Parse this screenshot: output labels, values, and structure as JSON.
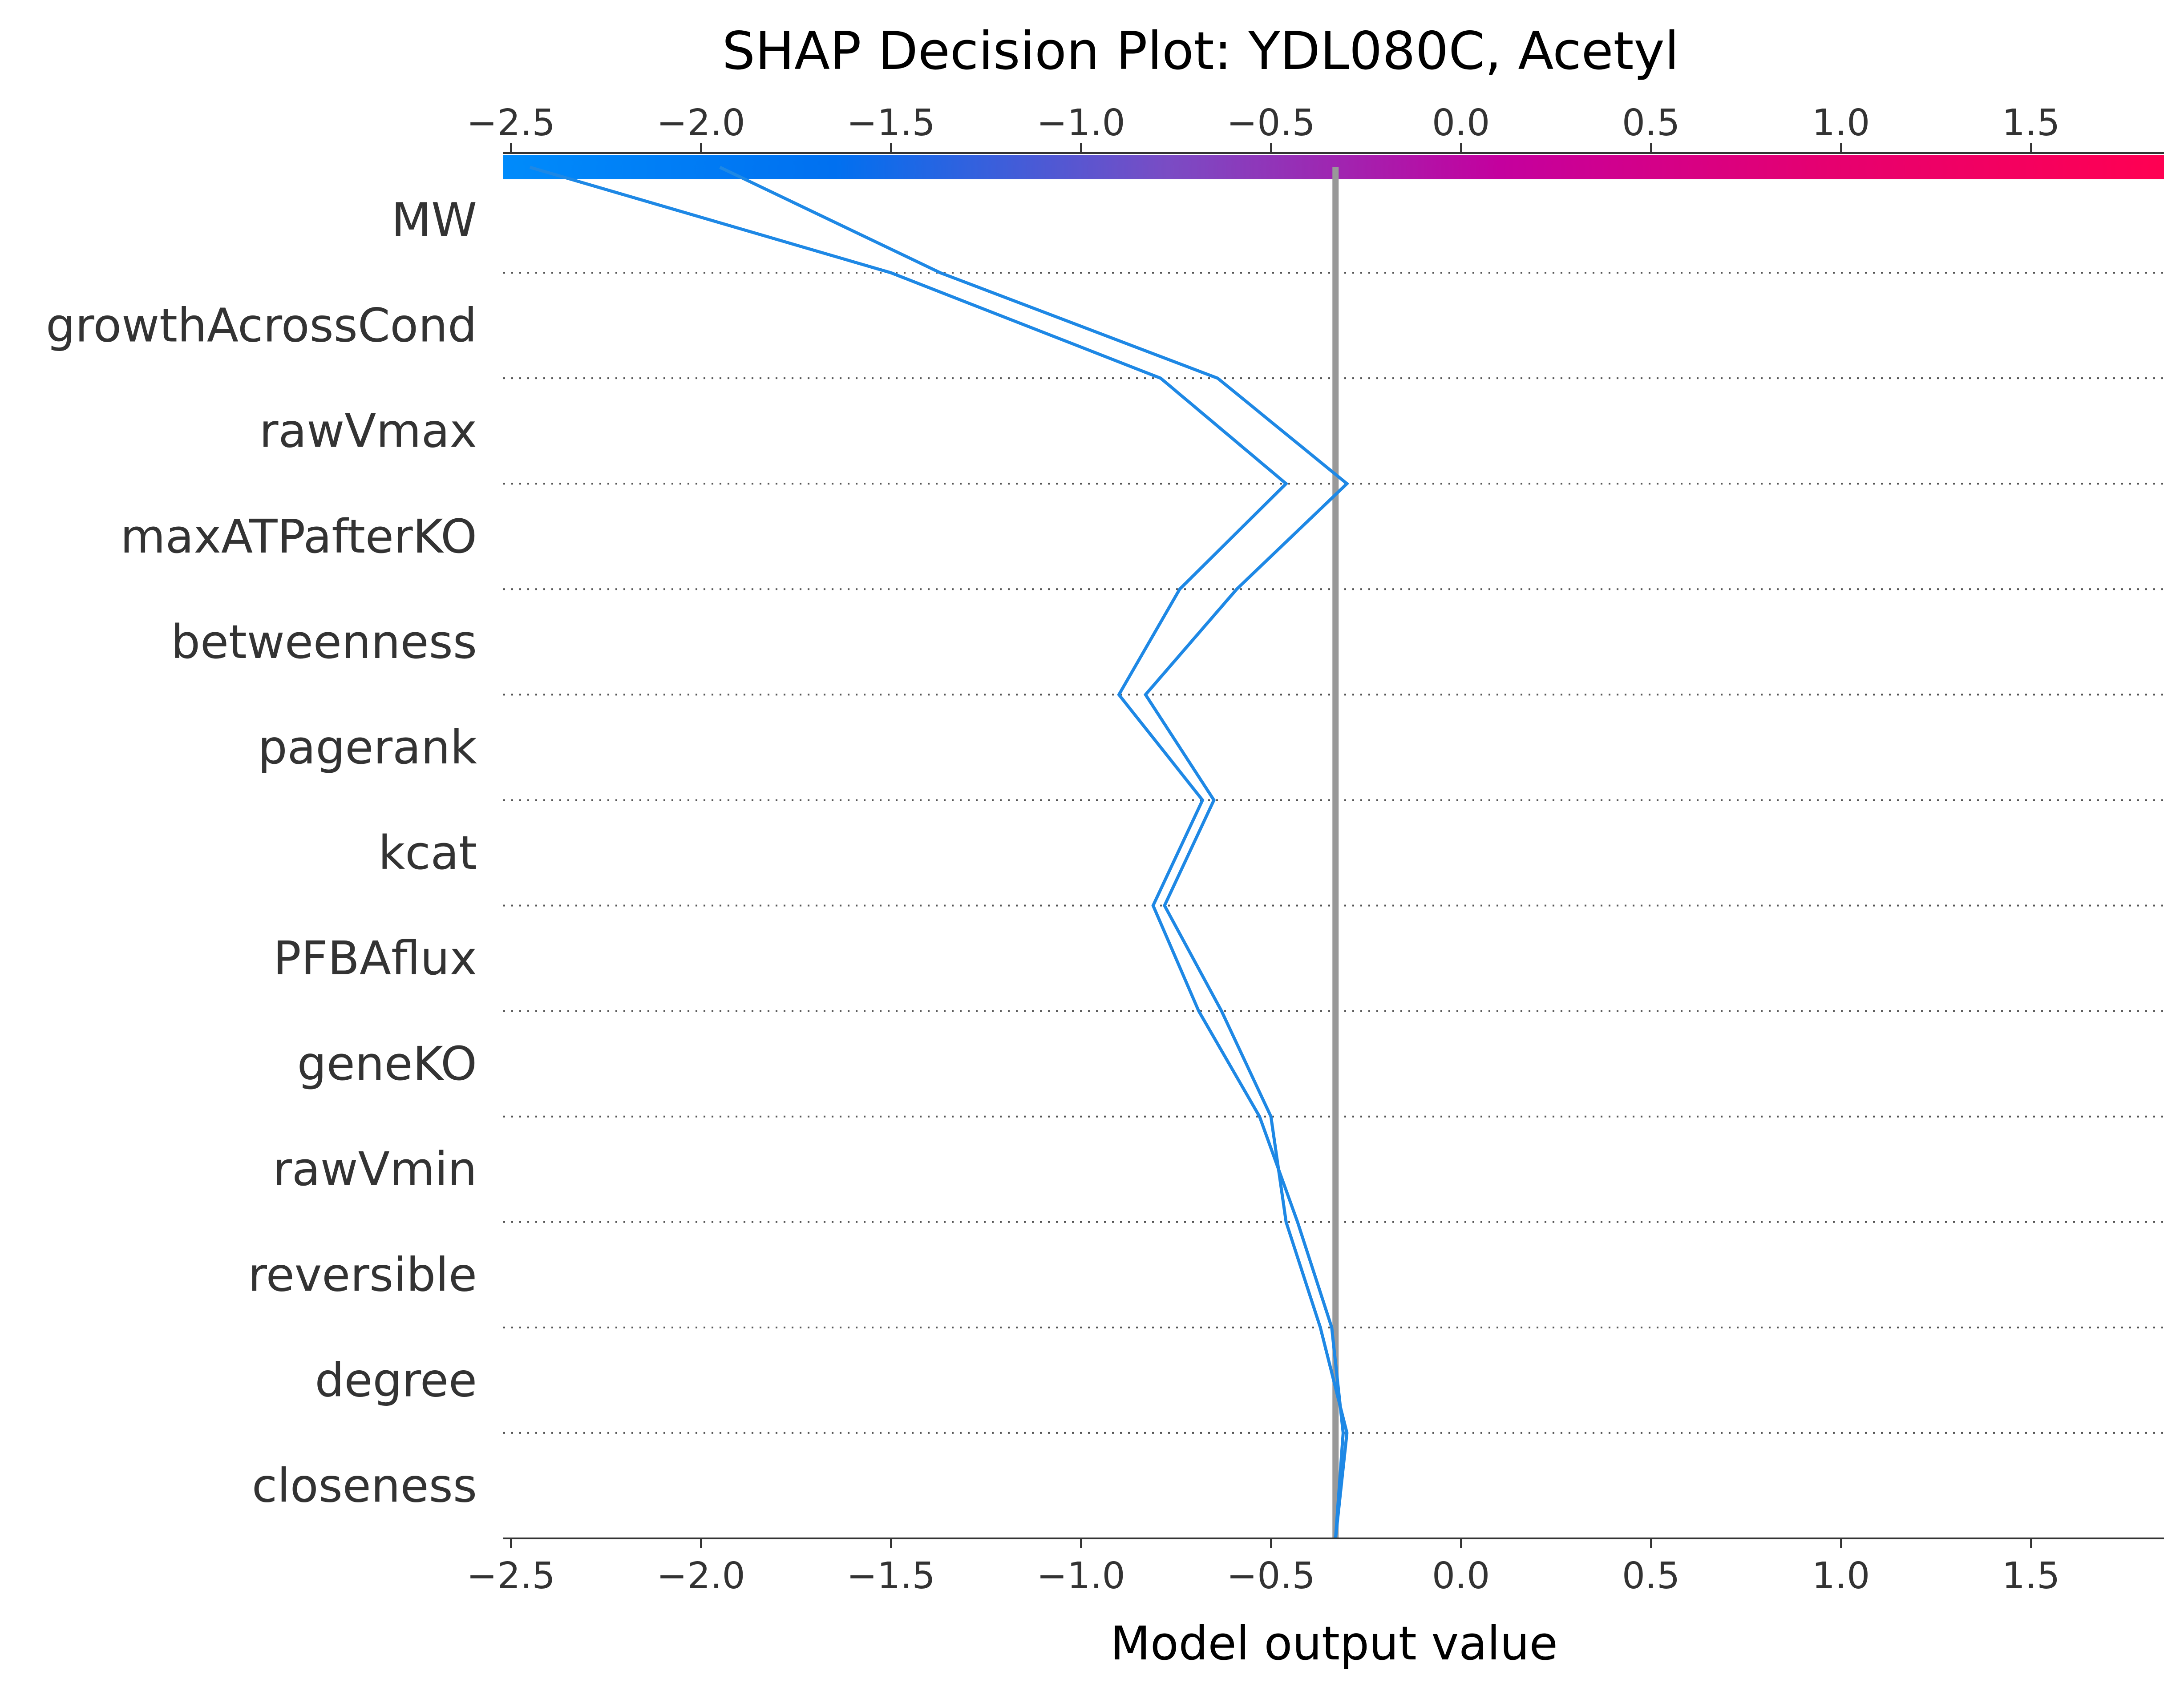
{
  "chart_data": {
    "type": "line",
    "title": "SHAP Decision Plot: YDL080C, Acetyl",
    "xlabel": "Model output value",
    "ylabel": "",
    "xlim": [
      -2.52,
      1.85
    ],
    "x_ticks": [
      -2.5,
      -2.0,
      -1.5,
      -1.0,
      -0.5,
      0.0,
      0.5,
      1.0,
      1.5
    ],
    "x_tick_labels": [
      "−2.5",
      "−2.0",
      "−1.5",
      "−1.0",
      "−0.5",
      "0.0",
      "0.5",
      "1.0",
      "1.5"
    ],
    "base_value": -0.33,
    "features": [
      "MW",
      "growthAcrossCond",
      "rawVmax",
      "maxATPafterKO",
      "betweenness",
      "pagerank",
      "kcat",
      "PFBAflux",
      "geneKO",
      "rawVmin",
      "reversible",
      "degree",
      "closeness"
    ],
    "series": [
      {
        "values_bottom_to_top": [
          -0.33,
          -0.3,
          -0.37,
          -0.46,
          -0.5,
          -0.63,
          -0.78,
          -0.65,
          -0.83,
          -0.59,
          -0.3,
          -0.64,
          -1.37,
          -1.95
        ]
      },
      {
        "values_bottom_to_top": [
          -0.33,
          -0.31,
          -0.34,
          -0.43,
          -0.53,
          -0.69,
          -0.81,
          -0.68,
          -0.9,
          -0.74,
          -0.46,
          -0.79,
          -1.5,
          -2.45
        ]
      }
    ],
    "line_color": "#1e88e5",
    "base_line_color": "#999999",
    "colorbar": {
      "stops": [
        "#008bfb",
        "#0070f0",
        "#7a4cc4",
        "#c4009e",
        "#e6006f",
        "#ff0052"
      ]
    },
    "grid": "dotted horizontal separators",
    "legend": "none"
  }
}
